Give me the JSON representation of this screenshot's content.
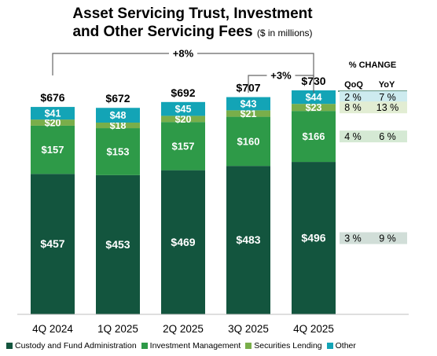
{
  "title": "Asset Servicing Trust, Investment",
  "title_line2": "and Other Servicing Fees",
  "subtitle": "($ in millions)",
  "colors": {
    "custody": "#13553E",
    "investment": "#2E9A48",
    "securities": "#79AE4A",
    "other": "#13A4B6",
    "bracket": "#666666"
  },
  "chart_data": {
    "type": "bar",
    "stacked": true,
    "categories": [
      "4Q 2024",
      "1Q 2025",
      "2Q 2025",
      "3Q 2025",
      "4Q 2025"
    ],
    "totals": [
      "$676",
      "$672",
      "$692",
      "$707",
      "$730"
    ],
    "total_values": [
      676,
      672,
      692,
      707,
      730
    ],
    "series": [
      {
        "name": "Custody and Fund Administration",
        "values": [
          457,
          453,
          469,
          483,
          496
        ],
        "labels": [
          "$457",
          "$453",
          "$469",
          "$483",
          "$496"
        ],
        "color_key": "custody"
      },
      {
        "name": "Investment Management",
        "values": [
          157,
          153,
          157,
          160,
          166
        ],
        "labels": [
          "$157",
          "$153",
          "$157",
          "$160",
          "$166"
        ],
        "color_key": "investment"
      },
      {
        "name": "Securities Lending",
        "values": [
          20,
          18,
          20,
          21,
          23
        ],
        "labels": [
          "$20",
          "$18",
          "$20",
          "$21",
          "$23"
        ],
        "color_key": "securities"
      },
      {
        "name": "Other",
        "values": [
          41,
          48,
          45,
          43,
          44
        ],
        "labels": [
          "$41",
          "$48",
          "$45",
          "$43",
          "$44"
        ],
        "color_key": "other"
      }
    ],
    "annotations": [
      {
        "text": "+8%",
        "from": "4Q 2024",
        "to": "4Q 2025"
      },
      {
        "text": "+3%",
        "from": "3Q 2025",
        "to": "4Q 2025"
      }
    ],
    "legend_position": "bottom"
  },
  "change_table": {
    "header": "% CHANGE",
    "columns": [
      "QoQ",
      "YoY"
    ],
    "rows": [
      {
        "series": "Other",
        "qoq": "2 %",
        "yoy": "7 %",
        "bg": "#CDEBEF"
      },
      {
        "series": "Securities Lending",
        "qoq": "8 %",
        "yoy": "13 %",
        "bg": "#E2EDD3"
      },
      {
        "series": "Investment Management",
        "qoq": "4 %",
        "yoy": "6 %",
        "bg": "#D5E9D4"
      },
      {
        "series": "Custody and Fund Administration",
        "qoq": "3 %",
        "yoy": "9 %",
        "bg": "#D1DED8"
      }
    ]
  },
  "legend": [
    {
      "label": "Custody and Fund Administration",
      "color_key": "custody"
    },
    {
      "label": "Investment Management",
      "color_key": "investment"
    },
    {
      "label": "Securities Lending",
      "color_key": "securities"
    },
    {
      "label": "Other",
      "color_key": "other"
    }
  ]
}
